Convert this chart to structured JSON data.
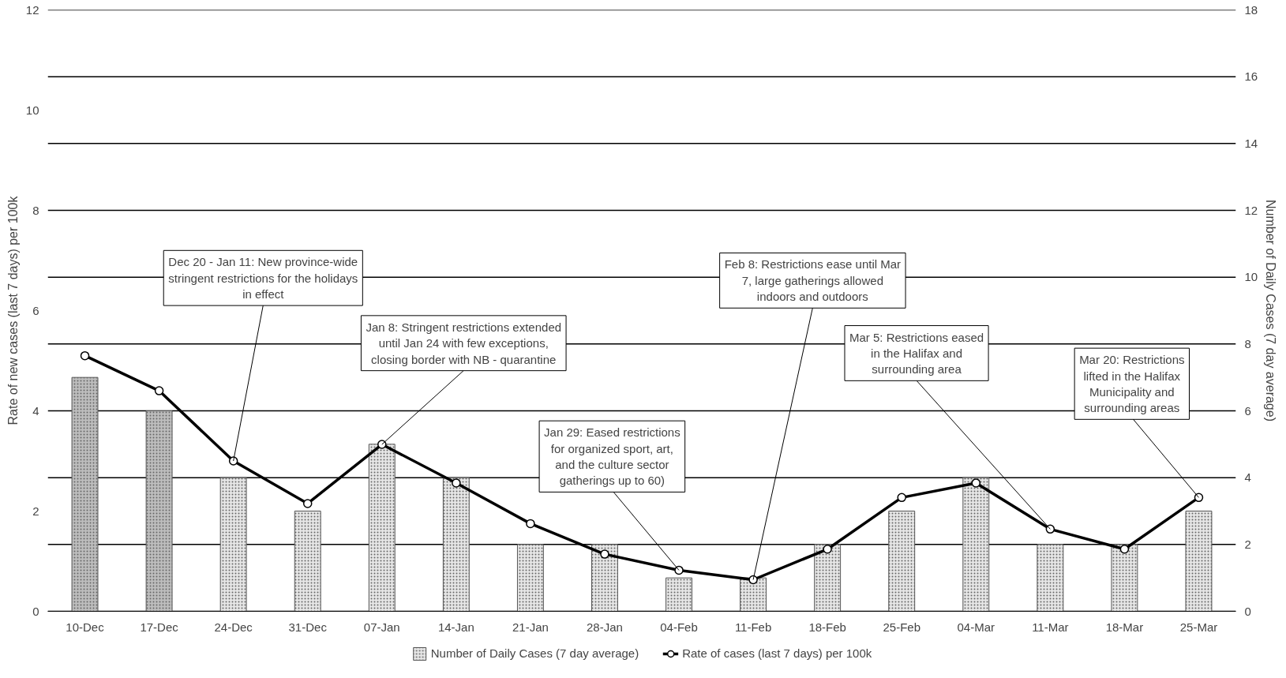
{
  "chart_data": {
    "type": "bar",
    "categories": [
      "10-Dec",
      "17-Dec",
      "24-Dec",
      "31-Dec",
      "07-Jan",
      "14-Jan",
      "21-Jan",
      "28-Jan",
      "04-Feb",
      "11-Feb",
      "18-Feb",
      "25-Feb",
      "04-Mar",
      "11-Mar",
      "18-Mar",
      "25-Mar"
    ],
    "ylabel": "Rate of new cases (last 7 days) per 100k",
    "y2label": "Number of Daily Cases (7 day average)",
    "ylim": [
      0,
      12
    ],
    "yticks": [
      0,
      2,
      4,
      6,
      8,
      10,
      12
    ],
    "y2lim": [
      0,
      18
    ],
    "y2ticks": [
      0,
      2,
      4,
      6,
      8,
      10,
      12,
      14,
      16,
      18
    ],
    "grid": "y",
    "legend": "bottom",
    "series": [
      {
        "name": "Number of Daily Cases (7 day average)",
        "axis": "y2",
        "colors": [
          "#bdbdbd",
          "#bdbdbd",
          "#e6e6e6",
          "#e6e6e6",
          "#e6e6e6",
          "#e6e6e6",
          "#e6e6e6",
          "#e6e6e6",
          "#e6e6e6",
          "#e6e6e6",
          "#e6e6e6",
          "#e6e6e6",
          "#e6e6e6",
          "#e6e6e6",
          "#e6e6e6",
          "#e6e6e6"
        ],
        "values": [
          7,
          6,
          4,
          3,
          5,
          4,
          2,
          2,
          1,
          1,
          2,
          3,
          4,
          2,
          2,
          3
        ]
      },
      {
        "name": "Rate of cases (last 7 days) per 100k",
        "type": "line",
        "axis": "y",
        "color": "#000000",
        "marker": "circle",
        "line_style": "solid",
        "values": [
          5.1,
          4.4,
          3.0,
          2.15,
          3.33,
          2.56,
          1.75,
          1.14,
          0.82,
          0.63,
          1.24,
          2.27,
          2.56,
          1.64,
          1.24,
          2.27
        ]
      }
    ],
    "annotations": [
      {
        "text": "Dec 20 - Jan 11: New province-wide\nstringent restrictions for the holidays\nin effect",
        "x": "24-Dec",
        "y": 3.0
      },
      {
        "text": "Jan 8: Stringent restrictions extended\nuntil Jan 24 with few exceptions,\nclosing border with NB - quarantine",
        "x": "07-Jan",
        "y": 3.33
      },
      {
        "text": "Jan 29: Eased restrictions\nfor organized sport, art,\nand the culture sector\ngatherings up to 60)",
        "x": "04-Feb",
        "y": 0.82
      },
      {
        "text": "Feb 8: Restrictions ease until Mar\n7, large gatherings allowed\nindoors and outdoors",
        "x": "11-Feb",
        "y": 0.63
      },
      {
        "text": "Mar 5: Restrictions eased\nin the Halifax and\nsurrounding area",
        "x": "11-Mar",
        "y": 1.64
      },
      {
        "text": "Mar 20: Restrictions\nlifted in the Halifax\nMunicipality and\nsurrounding areas",
        "x": "25-Mar",
        "y": 2.27
      }
    ]
  }
}
